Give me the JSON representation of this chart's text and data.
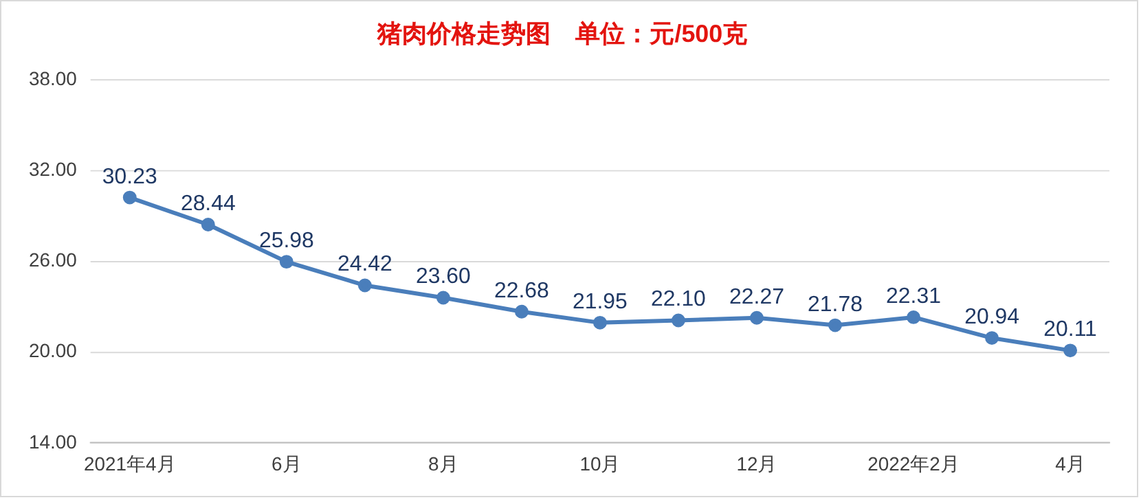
{
  "chart_data": {
    "type": "line",
    "title": "猪肉价格走势图　单位：元/500克",
    "categories": [
      "2021年4月",
      null,
      "6月",
      null,
      "8月",
      null,
      "10月",
      null,
      "12月",
      null,
      "2022年2月",
      null,
      "4月"
    ],
    "series": [
      {
        "color": "#4a7ebb",
        "values": [
          30.23,
          28.44,
          25.98,
          24.42,
          23.6,
          22.68,
          21.95,
          22.1,
          22.27,
          21.78,
          22.31,
          20.94,
          20.11
        ]
      }
    ],
    "value_labels": [
      "30.23",
      "28.44",
      "25.98",
      "24.42",
      "23.60",
      "22.68",
      "21.95",
      "22.10",
      "22.27",
      "21.78",
      "22.31",
      "20.94",
      "20.11"
    ],
    "ylim": [
      14,
      38
    ],
    "yticks": [
      {
        "value": 14,
        "label": "14.00"
      },
      {
        "value": 20,
        "label": "20.00"
      },
      {
        "value": 26,
        "label": "26.00"
      },
      {
        "value": 32,
        "label": "32.00"
      },
      {
        "value": 38,
        "label": "38.00"
      }
    ],
    "grid": "y",
    "legend": false,
    "marker": "circle",
    "line_style": "solid"
  }
}
